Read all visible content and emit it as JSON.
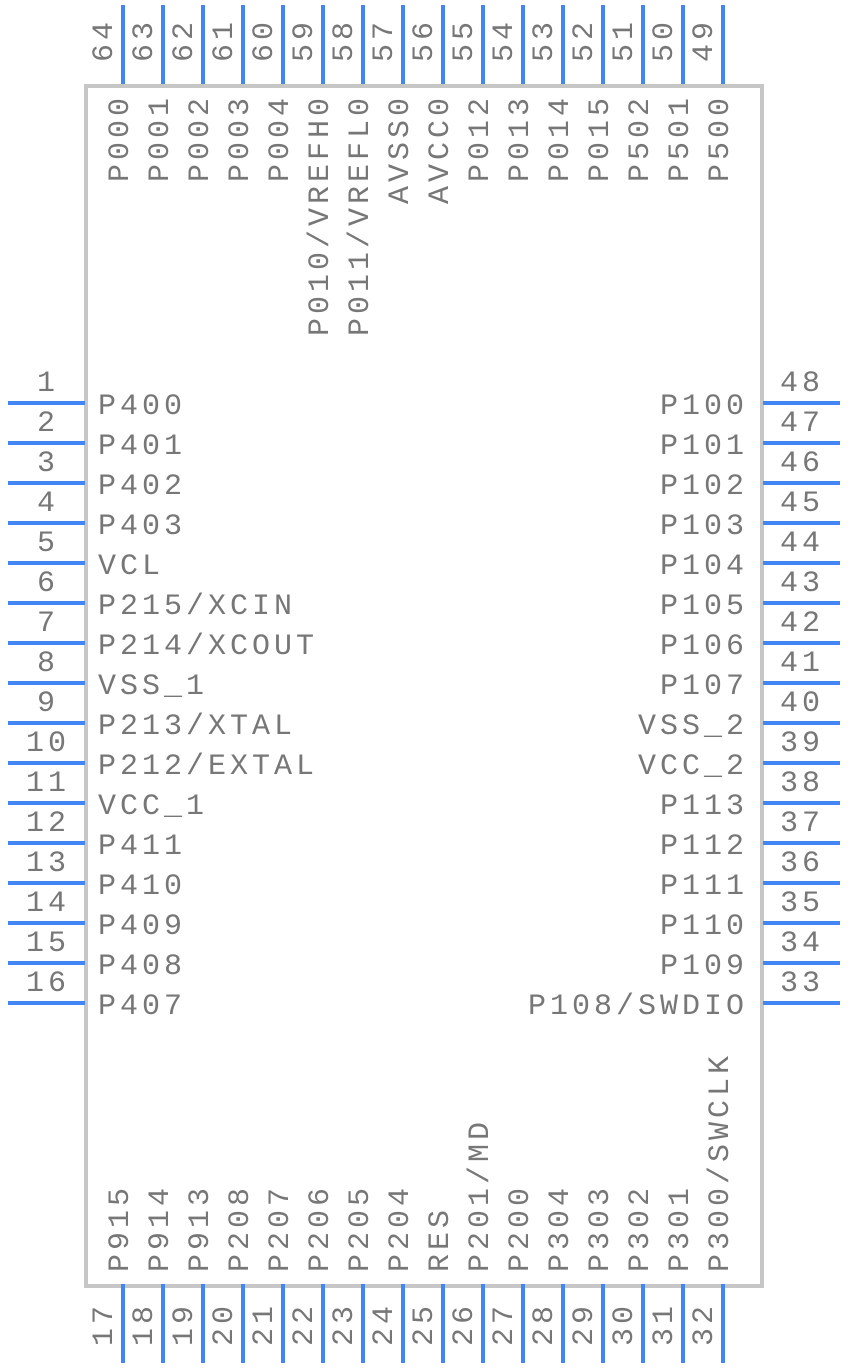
{
  "diagram": {
    "type": "ic-pinout-symbol",
    "package_pins": 64,
    "colors": {
      "pin_line": "#4285f4",
      "body_border": "#c6c6c6",
      "body_fill": "#ffffff",
      "text": "#777777"
    },
    "sides": {
      "top": {
        "order": "left-to-right",
        "pins": [
          {
            "number": "64",
            "name": "P000"
          },
          {
            "number": "63",
            "name": "P001"
          },
          {
            "number": "62",
            "name": "P002"
          },
          {
            "number": "61",
            "name": "P003"
          },
          {
            "number": "60",
            "name": "P004"
          },
          {
            "number": "59",
            "name": "P010/VREFH0"
          },
          {
            "number": "58",
            "name": "P011/VREFL0"
          },
          {
            "number": "57",
            "name": "AVSS0"
          },
          {
            "number": "56",
            "name": "AVCC0"
          },
          {
            "number": "55",
            "name": "P012"
          },
          {
            "number": "54",
            "name": "P013"
          },
          {
            "number": "53",
            "name": "P014"
          },
          {
            "number": "52",
            "name": "P015"
          },
          {
            "number": "51",
            "name": "P502"
          },
          {
            "number": "50",
            "name": "P501"
          },
          {
            "number": "49",
            "name": "P500"
          }
        ]
      },
      "left": {
        "order": "top-to-bottom",
        "pins": [
          {
            "number": "1",
            "name": "P400"
          },
          {
            "number": "2",
            "name": "P401"
          },
          {
            "number": "3",
            "name": "P402"
          },
          {
            "number": "4",
            "name": "P403"
          },
          {
            "number": "5",
            "name": "VCL"
          },
          {
            "number": "6",
            "name": "P215/XCIN"
          },
          {
            "number": "7",
            "name": "P214/XCOUT"
          },
          {
            "number": "8",
            "name": "VSS_1"
          },
          {
            "number": "9",
            "name": "P213/XTAL"
          },
          {
            "number": "10",
            "name": "P212/EXTAL"
          },
          {
            "number": "11",
            "name": "VCC_1"
          },
          {
            "number": "12",
            "name": "P411"
          },
          {
            "number": "13",
            "name": "P410"
          },
          {
            "number": "14",
            "name": "P409"
          },
          {
            "number": "15",
            "name": "P408"
          },
          {
            "number": "16",
            "name": "P407"
          }
        ]
      },
      "right": {
        "order": "top-to-bottom",
        "pins": [
          {
            "number": "48",
            "name": "P100"
          },
          {
            "number": "47",
            "name": "P101"
          },
          {
            "number": "46",
            "name": "P102"
          },
          {
            "number": "45",
            "name": "P103"
          },
          {
            "number": "44",
            "name": "P104"
          },
          {
            "number": "43",
            "name": "P105"
          },
          {
            "number": "42",
            "name": "P106"
          },
          {
            "number": "41",
            "name": "P107"
          },
          {
            "number": "40",
            "name": "VSS_2"
          },
          {
            "number": "39",
            "name": "VCC_2"
          },
          {
            "number": "38",
            "name": "P113"
          },
          {
            "number": "37",
            "name": "P112"
          },
          {
            "number": "36",
            "name": "P111"
          },
          {
            "number": "35",
            "name": "P110"
          },
          {
            "number": "34",
            "name": "P109"
          },
          {
            "number": "33",
            "name": "P108/SWDIO"
          }
        ]
      },
      "bottom": {
        "order": "left-to-right",
        "pins": [
          {
            "number": "17",
            "name": "P915"
          },
          {
            "number": "18",
            "name": "P914"
          },
          {
            "number": "19",
            "name": "P913"
          },
          {
            "number": "20",
            "name": "P208"
          },
          {
            "number": "21",
            "name": "P207"
          },
          {
            "number": "22",
            "name": "P206"
          },
          {
            "number": "23",
            "name": "P205"
          },
          {
            "number": "24",
            "name": "P204"
          },
          {
            "number": "25",
            "name": "RES"
          },
          {
            "number": "26",
            "name": "P201/MD"
          },
          {
            "number": "27",
            "name": "P200"
          },
          {
            "number": "28",
            "name": "P304"
          },
          {
            "number": "29",
            "name": "P303"
          },
          {
            "number": "30",
            "name": "P302"
          },
          {
            "number": "31",
            "name": "P301"
          },
          {
            "number": "32",
            "name": "P300/SWCLK"
          }
        ]
      }
    }
  }
}
